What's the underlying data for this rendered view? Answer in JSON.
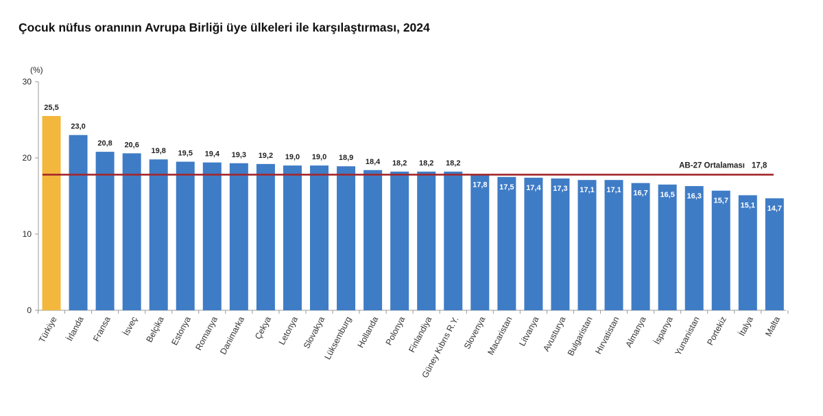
{
  "title": "Çocuk nüfus oranının Avrupa Birliği üye ülkeleri ile karşılaştırması, 2024",
  "colors": {
    "bar": "#3f7cc6",
    "highlight": "#f3b73d",
    "average_line": "#a3262a",
    "axis": "#999999"
  },
  "chart_data": {
    "type": "bar",
    "title": "Çocuk nüfus oranının Avrupa Birliği üye ülkeleri ile karşılaştırması, 2024",
    "ylabel": "(%)",
    "xlabel": "",
    "ylim": [
      0,
      30
    ],
    "yticks": [
      0,
      10,
      20,
      30
    ],
    "grid": false,
    "categories": [
      "Türkiye",
      "İrlanda",
      "Fransa",
      "İsveç",
      "Belçika",
      "Estonya",
      "Romanya",
      "Danimarka",
      "Çekya",
      "Letonya",
      "Slovakya",
      "Lüksemburg",
      "Hollanda",
      "Polonya",
      "Finlandiya",
      "Güney Kıbrıs R.Y.",
      "Slovenya",
      "Macaristan",
      "Litvanya",
      "Avusturya",
      "Bulgaristan",
      "Hırvatistan",
      "Almanya",
      "İspanya",
      "Yunanistan",
      "Portekiz",
      "İtalya",
      "Malta"
    ],
    "values": [
      25.5,
      23.0,
      20.8,
      20.6,
      19.8,
      19.5,
      19.4,
      19.3,
      19.2,
      19.0,
      19.0,
      18.9,
      18.4,
      18.2,
      18.2,
      18.2,
      17.8,
      17.5,
      17.4,
      17.3,
      17.1,
      17.1,
      16.7,
      16.5,
      16.3,
      15.7,
      15.1,
      14.7
    ],
    "labels": [
      "25,5",
      "23,0",
      "20,8",
      "20,6",
      "19,8",
      "19,5",
      "19,4",
      "19,3",
      "19,2",
      "19,0",
      "19,0",
      "18,9",
      "18,4",
      "18,2",
      "18,2",
      "18,2",
      "17,8",
      "17,5",
      "17,4",
      "17,3",
      "17,1",
      "17,1",
      "16,7",
      "16,5",
      "16,3",
      "15,7",
      "15,1",
      "14,7"
    ],
    "highlight_index": 0,
    "reference_line": {
      "label": "AB-27 Ortalaması",
      "value": 17.8,
      "value_label": "17,8"
    }
  }
}
